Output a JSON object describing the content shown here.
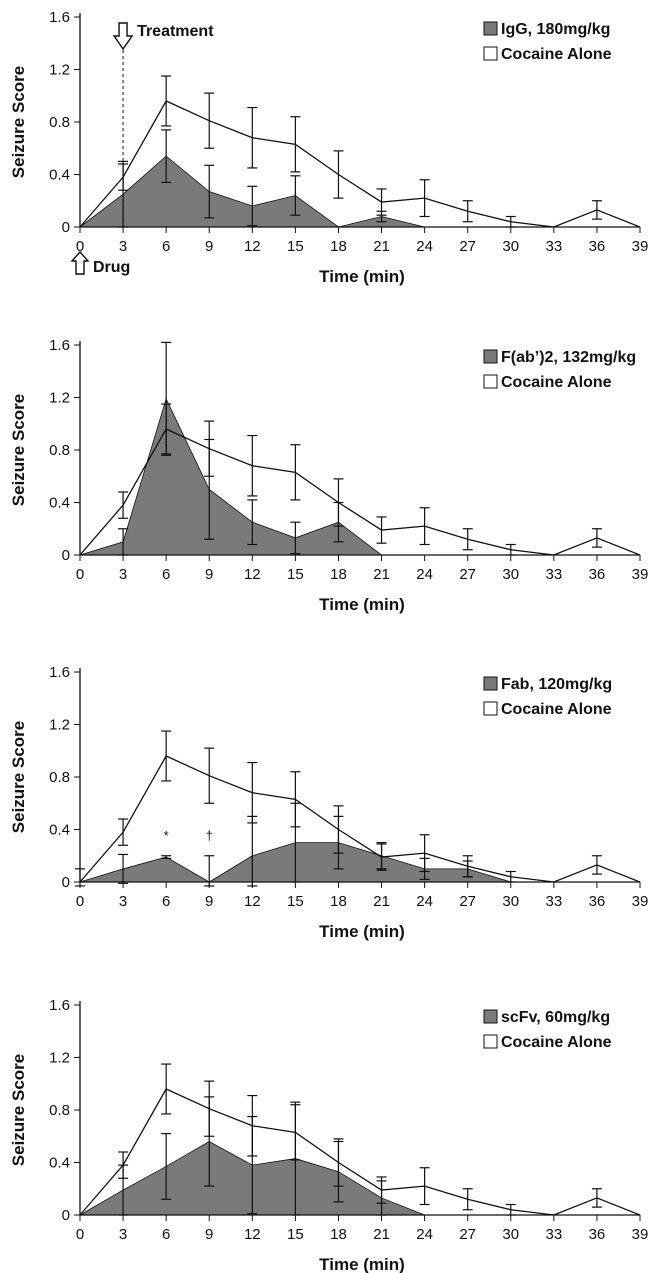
{
  "colors": {
    "treated_fill": "#7a7a7a",
    "line": "#111111",
    "background": "#ffffff"
  },
  "chart_data": [
    {
      "type": "area",
      "title": "",
      "xlabel": "Time (min)",
      "ylabel": "Seizure Score",
      "x": [
        0,
        3,
        6,
        9,
        12,
        15,
        18,
        21,
        24,
        27,
        30,
        33,
        36,
        39
      ],
      "xlim": [
        0,
        39
      ],
      "ylim": [
        0,
        1.6
      ],
      "yticks": [
        "0",
        "0.4",
        "0.8",
        "1.2",
        "1.6"
      ],
      "legend_position": "top-right",
      "annotations": {
        "treatment": "Treatment",
        "drug": "Drug"
      },
      "series": [
        {
          "name": "IgG, 180mg/kg",
          "style": "filled",
          "values": [
            0,
            0.25,
            0.54,
            0.27,
            0.16,
            0.24,
            0,
            0.08,
            0,
            null,
            null,
            null,
            null,
            null
          ],
          "errors": [
            0,
            0.25,
            0.2,
            0.2,
            0.15,
            0.15,
            0,
            0.04,
            0,
            null,
            null,
            null,
            null,
            null
          ]
        },
        {
          "name": "Cocaine Alone",
          "style": "open",
          "values": [
            0,
            0.38,
            0.96,
            0.81,
            0.68,
            0.63,
            0.4,
            0.19,
            0.22,
            0.12,
            0.04,
            0,
            0.13,
            0
          ],
          "errors": [
            0,
            0.1,
            0.19,
            0.21,
            0.23,
            0.21,
            0.18,
            0.1,
            0.14,
            0.08,
            0.04,
            0,
            0.07,
            0
          ]
        }
      ],
      "markers": []
    },
    {
      "type": "area",
      "title": "",
      "xlabel": "Time (min)",
      "ylabel": "Seizure Score",
      "x": [
        0,
        3,
        6,
        9,
        12,
        15,
        18,
        21,
        24,
        27,
        30,
        33,
        36,
        39
      ],
      "xlim": [
        0,
        39
      ],
      "ylim": [
        0,
        1.6
      ],
      "yticks": [
        "0",
        "0.4",
        "0.8",
        "1.2",
        "1.6"
      ],
      "legend_position": "top-right",
      "series": [
        {
          "name": "F(ab’)2, 132mg/kg",
          "style": "filled",
          "values": [
            0,
            0.1,
            1.19,
            0.5,
            0.25,
            0.13,
            0.25,
            0,
            null,
            null,
            null,
            null,
            null,
            null
          ],
          "errors": [
            0,
            0.1,
            0.43,
            0.38,
            0.17,
            0.12,
            0.15,
            0,
            null,
            null,
            null,
            null,
            null,
            null
          ]
        },
        {
          "name": "Cocaine Alone",
          "style": "open",
          "values": [
            0,
            0.38,
            0.96,
            0.81,
            0.68,
            0.63,
            0.4,
            0.19,
            0.22,
            0.12,
            0.04,
            0,
            0.13,
            0
          ],
          "errors": [
            0,
            0.1,
            0.19,
            0.21,
            0.23,
            0.21,
            0.18,
            0.1,
            0.14,
            0.08,
            0.04,
            0,
            0.07,
            0
          ]
        }
      ],
      "markers": []
    },
    {
      "type": "area",
      "title": "",
      "xlabel": "Time (min)",
      "ylabel": "Seizure Score",
      "x": [
        0,
        3,
        6,
        9,
        12,
        15,
        18,
        21,
        24,
        27,
        30,
        33,
        36,
        39
      ],
      "xlim": [
        0,
        39
      ],
      "ylim": [
        0,
        1.6
      ],
      "yticks": [
        "0",
        "0.4",
        "0.8",
        "1.2",
        "1.6"
      ],
      "legend_position": "top-right",
      "series": [
        {
          "name": "Fab, 120mg/kg",
          "style": "filled",
          "values": [
            0,
            0.1,
            0.19,
            0,
            0.2,
            0.3,
            0.3,
            0.2,
            0.1,
            0.1,
            0,
            0,
            null,
            null
          ],
          "errors": [
            0.1,
            0.11,
            0.01,
            0.2,
            0.3,
            0.3,
            0.2,
            0.1,
            0.08,
            0.06,
            0,
            0,
            null,
            null
          ]
        },
        {
          "name": "Cocaine Alone",
          "style": "open",
          "values": [
            0,
            0.38,
            0.96,
            0.81,
            0.68,
            0.63,
            0.4,
            0.19,
            0.22,
            0.12,
            0.04,
            0,
            0.13,
            0
          ],
          "errors": [
            0,
            0.1,
            0.19,
            0.21,
            0.23,
            0.21,
            0.18,
            0.1,
            0.14,
            0.08,
            0.04,
            0,
            0.07,
            0
          ]
        }
      ],
      "markers": [
        {
          "x": 6,
          "y": 0.32,
          "text": "*"
        },
        {
          "x": 9,
          "y": 0.32,
          "text": "†"
        }
      ]
    },
    {
      "type": "area",
      "title": "",
      "xlabel": "Time (min)",
      "ylabel": "Seizure Score",
      "x": [
        0,
        3,
        6,
        9,
        12,
        15,
        18,
        21,
        24,
        27,
        30,
        33,
        36,
        39
      ],
      "xlim": [
        0,
        39
      ],
      "ylim": [
        0,
        1.6
      ],
      "yticks": [
        "0",
        "0.4",
        "0.8",
        "1.2",
        "1.6"
      ],
      "legend_position": "top-right",
      "series": [
        {
          "name": "scFv, 60mg/kg",
          "style": "filled",
          "values": [
            0,
            0.19,
            0.37,
            0.56,
            0.38,
            0.43,
            0.33,
            0.13,
            0,
            null,
            null,
            null,
            null,
            null
          ],
          "errors": [
            0,
            0.19,
            0.25,
            0.34,
            0.37,
            0.43,
            0.23,
            0.13,
            0,
            null,
            null,
            null,
            null,
            null
          ]
        },
        {
          "name": "Cocaine Alone",
          "style": "open",
          "values": [
            0,
            0.38,
            0.96,
            0.81,
            0.68,
            0.63,
            0.4,
            0.19,
            0.22,
            0.12,
            0.04,
            0,
            0.13,
            0
          ],
          "errors": [
            0,
            0.1,
            0.19,
            0.21,
            0.23,
            0.21,
            0.18,
            0.1,
            0.14,
            0.08,
            0.04,
            0,
            0.07,
            0
          ]
        }
      ],
      "markers": []
    }
  ]
}
